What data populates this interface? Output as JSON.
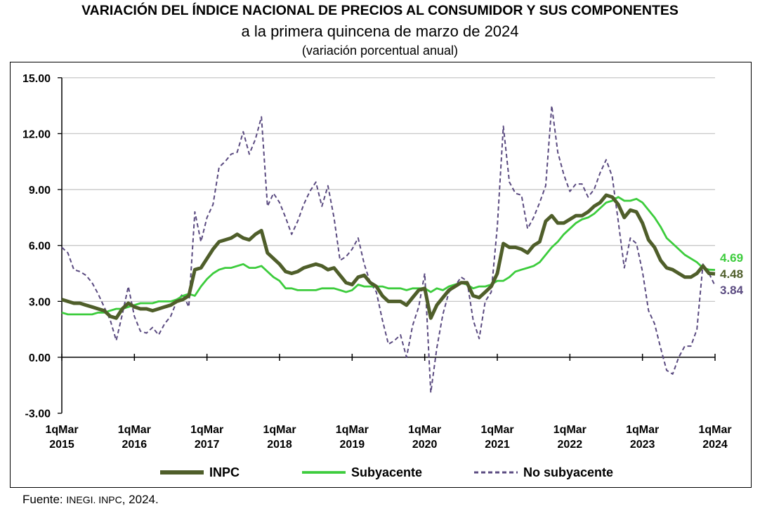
{
  "title": "VARIACIÓN DEL ÍNDICE NACIONAL DE PRECIOS AL CONSUMIDOR Y SUS COMPONENTES",
  "subtitle": "a la primera quincena de marzo de 2024",
  "subtitle2": "(variación porcentual anual)",
  "source": {
    "label": "Fuente: ",
    "org": "INEGI. INPC",
    "year": ", 2024."
  },
  "chart_data": {
    "type": "line",
    "title": "VARIACIÓN DEL ÍNDICE NACIONAL DE PRECIOS AL CONSUMIDOR Y SUS COMPONENTES",
    "xlabel": "",
    "ylabel": "",
    "ylim": [
      -3,
      15
    ],
    "yticks": [
      "15.00",
      "12.00",
      "9.00",
      "6.00",
      "3.00",
      "0.00",
      "-3.00"
    ],
    "xticks": [
      {
        "date": "2015-03",
        "l1": "1qMar",
        "l2": "2015"
      },
      {
        "date": "2016-03",
        "l1": "1qMar",
        "l2": "2016"
      },
      {
        "date": "2017-03",
        "l1": "1qMar",
        "l2": "2017"
      },
      {
        "date": "2018-03",
        "l1": "1qMar",
        "l2": "2018"
      },
      {
        "date": "2019-03",
        "l1": "1qMar",
        "l2": "2019"
      },
      {
        "date": "2020-03",
        "l1": "1qMar",
        "l2": "2020"
      },
      {
        "date": "2021-03",
        "l1": "1qMar",
        "l2": "2021"
      },
      {
        "date": "2022-03",
        "l1": "1qMar",
        "l2": "2022"
      },
      {
        "date": "2023-03",
        "l1": "1qMar",
        "l2": "2023"
      },
      {
        "date": "2024-03",
        "l1": "1qMar",
        "l2": "2024"
      }
    ],
    "grid": "horizontal",
    "legend": "bottom",
    "x_start": "2015-03",
    "x_end": "2024-03",
    "series": [
      {
        "name": "INPC",
        "color": "#4f5e2a",
        "style": "solid-thick",
        "last_label": "4.48",
        "values": [
          3.1,
          3.0,
          2.9,
          2.9,
          2.8,
          2.7,
          2.6,
          2.5,
          2.2,
          2.1,
          2.6,
          2.9,
          2.7,
          2.6,
          2.6,
          2.5,
          2.6,
          2.7,
          2.8,
          3.0,
          3.1,
          3.3,
          4.7,
          4.8,
          5.3,
          5.8,
          6.2,
          6.3,
          6.4,
          6.6,
          6.4,
          6.3,
          6.6,
          6.8,
          5.6,
          5.3,
          5.0,
          4.6,
          4.5,
          4.6,
          4.8,
          4.9,
          5.0,
          4.9,
          4.7,
          4.8,
          4.4,
          4.0,
          3.9,
          4.3,
          4.4,
          4.0,
          3.8,
          3.3,
          3.0,
          3.0,
          3.0,
          2.8,
          3.2,
          3.6,
          3.7,
          2.1,
          2.8,
          3.2,
          3.6,
          3.8,
          4.0,
          4.0,
          3.3,
          3.2,
          3.5,
          3.8,
          4.5,
          6.1,
          5.9,
          5.9,
          5.8,
          5.6,
          6.0,
          6.2,
          7.3,
          7.6,
          7.2,
          7.2,
          7.4,
          7.6,
          7.6,
          7.8,
          8.1,
          8.3,
          8.7,
          8.6,
          8.2,
          7.5,
          7.9,
          7.8,
          7.2,
          6.3,
          5.9,
          5.2,
          4.8,
          4.7,
          4.5,
          4.3,
          4.3,
          4.5,
          4.9,
          4.5,
          4.48
        ]
      },
      {
        "name": "Subyacente",
        "color": "#3ccc3c",
        "style": "solid",
        "last_label": "4.69",
        "values": [
          2.4,
          2.3,
          2.3,
          2.3,
          2.3,
          2.3,
          2.4,
          2.4,
          2.5,
          2.6,
          2.6,
          2.7,
          2.8,
          2.9,
          2.9,
          2.9,
          3.0,
          3.0,
          3.0,
          3.1,
          3.3,
          3.4,
          3.3,
          3.8,
          4.2,
          4.5,
          4.7,
          4.8,
          4.8,
          4.9,
          5.0,
          4.8,
          4.8,
          4.9,
          4.6,
          4.3,
          4.1,
          3.7,
          3.7,
          3.6,
          3.6,
          3.6,
          3.6,
          3.7,
          3.7,
          3.7,
          3.6,
          3.5,
          3.6,
          3.9,
          3.8,
          3.8,
          3.8,
          3.8,
          3.7,
          3.7,
          3.7,
          3.6,
          3.7,
          3.7,
          3.7,
          3.5,
          3.7,
          3.6,
          3.8,
          3.9,
          4.0,
          3.9,
          3.7,
          3.8,
          3.8,
          3.9,
          4.1,
          4.1,
          4.3,
          4.6,
          4.7,
          4.8,
          4.9,
          5.1,
          5.5,
          5.9,
          6.2,
          6.6,
          6.9,
          7.2,
          7.4,
          7.5,
          7.7,
          8.0,
          8.3,
          8.4,
          8.6,
          8.4,
          8.4,
          8.5,
          8.3,
          7.9,
          7.5,
          7.0,
          6.4,
          6.1,
          5.8,
          5.5,
          5.3,
          5.1,
          4.8,
          4.7,
          4.69
        ]
      },
      {
        "name": "No subyacente",
        "color": "#5a4a80",
        "style": "dashed",
        "last_label": "3.84",
        "values": [
          5.9,
          5.6,
          4.7,
          4.6,
          4.4,
          4.0,
          3.4,
          2.7,
          2.0,
          0.9,
          2.3,
          3.8,
          2.2,
          1.4,
          1.3,
          1.6,
          1.2,
          1.8,
          2.2,
          3.0,
          3.4,
          2.7,
          7.8,
          6.2,
          7.5,
          8.2,
          10.2,
          10.5,
          10.9,
          11.0,
          12.1,
          10.9,
          11.7,
          12.9,
          8.1,
          8.8,
          8.3,
          7.5,
          6.6,
          7.3,
          8.2,
          8.9,
          9.4,
          8.1,
          9.2,
          7.5,
          5.2,
          5.4,
          5.8,
          6.4,
          5.0,
          4.0,
          3.5,
          2.0,
          0.7,
          0.9,
          1.2,
          0.0,
          1.7,
          2.7,
          4.5,
          -1.9,
          0.5,
          2.3,
          3.5,
          3.8,
          4.3,
          4.1,
          2.0,
          1.0,
          3.0,
          3.5,
          7.0,
          12.4,
          9.4,
          8.8,
          8.7,
          6.9,
          7.5,
          8.3,
          9.2,
          13.5,
          11.0,
          9.8,
          8.9,
          9.3,
          9.3,
          8.6,
          9.0,
          9.9,
          10.6,
          9.7,
          7.3,
          4.8,
          6.4,
          6.1,
          4.6,
          2.5,
          1.8,
          0.5,
          -0.7,
          -0.9,
          0.0,
          0.6,
          0.6,
          1.5,
          5.0,
          4.5,
          3.84
        ]
      }
    ]
  }
}
